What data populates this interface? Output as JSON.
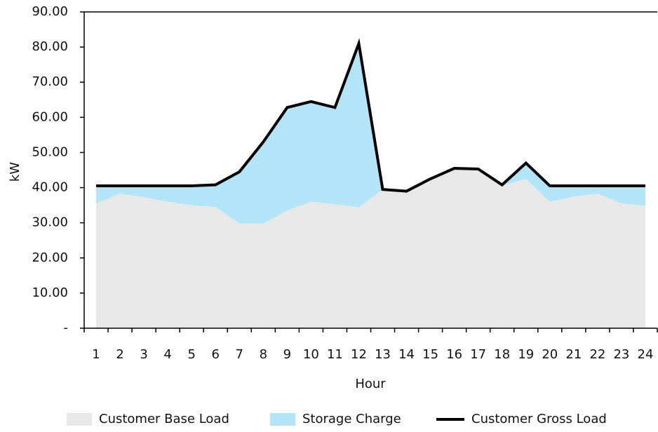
{
  "chart_data": {
    "type": "area",
    "stacked": true,
    "y_label": "kW",
    "x_label": "Hour",
    "categories": [
      "1",
      "2",
      "3",
      "4",
      "5",
      "6",
      "7",
      "8",
      "9",
      "10",
      "11",
      "12",
      "13",
      "14",
      "15",
      "16",
      "17",
      "18",
      "19",
      "20",
      "21",
      "22",
      "23",
      "24"
    ],
    "series": [
      {
        "name": "Customer Base Load",
        "type": "area",
        "color": "#e8e8e8",
        "values": [
          35.5,
          38.3,
          37.3,
          36,
          35,
          34.5,
          29.8,
          29.8,
          33.5,
          36,
          35.3,
          34.4,
          39.5,
          39,
          42.3,
          45.5,
          45.3,
          40.5,
          42.5,
          36,
          37.5,
          38.3,
          35.5,
          34.8
        ]
      },
      {
        "name": "Storage Charge",
        "type": "area",
        "color": "#b3e4f8",
        "values": [
          5,
          2.2,
          3.2,
          4.5,
          5.5,
          6.3,
          14.7,
          23.2,
          29.3,
          28.5,
          27.5,
          46.6,
          0,
          0,
          0.2,
          0,
          0,
          0.3,
          4.5,
          4.5,
          3,
          2.2,
          5,
          5.7
        ]
      },
      {
        "name": "Customer Gross Load",
        "type": "line",
        "color": "#000000",
        "values": [
          40.5,
          40.5,
          40.5,
          40.5,
          40.5,
          40.8,
          44.5,
          53,
          62.8,
          64.5,
          62.8,
          81,
          39.5,
          39,
          42.5,
          45.5,
          45.3,
          40.8,
          47,
          40.5,
          40.5,
          40.5,
          40.5,
          40.5
        ]
      }
    ],
    "ylim": [
      0,
      90
    ],
    "yticks": [
      {
        "value": 0,
        "label": "-"
      },
      {
        "value": 10,
        "label": "10.00"
      },
      {
        "value": 20,
        "label": "20.00"
      },
      {
        "value": 30,
        "label": "30.00"
      },
      {
        "value": 40,
        "label": "40.00"
      },
      {
        "value": 50,
        "label": "50.00"
      },
      {
        "value": 60,
        "label": "60.00"
      },
      {
        "value": 70,
        "label": "70.00"
      },
      {
        "value": 80,
        "label": "80.00"
      },
      {
        "value": 90,
        "label": "90.00"
      }
    ],
    "grid": false,
    "legend": "bottom"
  }
}
